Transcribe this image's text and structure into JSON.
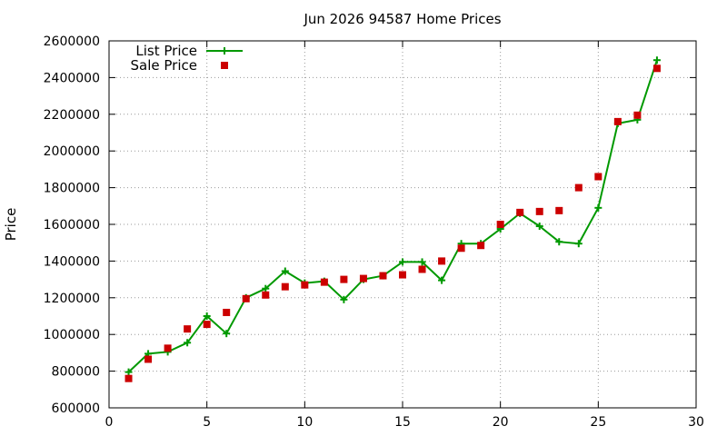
{
  "chart_data": {
    "type": "line",
    "title": "Jun 2026 94587 Home Prices",
    "xlabel": "",
    "ylabel": "Price",
    "xlim": [
      0,
      30
    ],
    "ylim": [
      600000,
      2600000
    ],
    "x_ticks": [
      0,
      5,
      10,
      15,
      20,
      25,
      30
    ],
    "y_ticks": [
      600000,
      800000,
      1000000,
      1200000,
      1400000,
      1600000,
      1800000,
      2000000,
      2200000,
      2400000,
      2600000
    ],
    "grid": true,
    "legend_position": "top-left",
    "x": [
      1,
      2,
      3,
      4,
      5,
      6,
      7,
      8,
      9,
      10,
      11,
      12,
      13,
      14,
      15,
      16,
      17,
      18,
      19,
      20,
      21,
      22,
      23,
      24,
      25,
      26,
      27,
      28
    ],
    "series": [
      {
        "name": "List Price",
        "style": "line+plus",
        "color": "#009900",
        "values": [
          795000,
          895000,
          905000,
          955000,
          1100000,
          1005000,
          1200000,
          1250000,
          1345000,
          1280000,
          1290000,
          1190000,
          1300000,
          1320000,
          1395000,
          1395000,
          1295000,
          1495000,
          1495000,
          1575000,
          1660000,
          1590000,
          1505000,
          1495000,
          1690000,
          2150000,
          2170000,
          2495000
        ]
      },
      {
        "name": "Sale Price",
        "style": "square",
        "color": "#cc0000",
        "values": [
          760000,
          865000,
          925000,
          1030000,
          1055000,
          1120000,
          1195000,
          1215000,
          1260000,
          1270000,
          1285000,
          1300000,
          1305000,
          1320000,
          1325000,
          1355000,
          1400000,
          1470000,
          1485000,
          1600000,
          1665000,
          1670000,
          1675000,
          1800000,
          1860000,
          2160000,
          2195000,
          2450000
        ]
      }
    ]
  }
}
